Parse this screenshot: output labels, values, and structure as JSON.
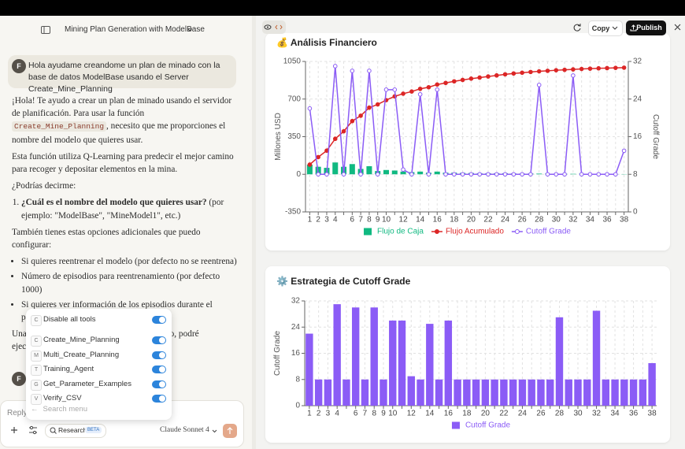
{
  "header": {
    "title": "Mining Plan Generation with ModelBase"
  },
  "artifact_toolbar": {
    "copy": "Copy",
    "publish": "Publish"
  },
  "user_message": {
    "avatar": "F",
    "text": "Hola ayudame creandome un plan de minado con la base de datos ModelBase usando el Server Create_Mine_Planning"
  },
  "response": {
    "p1": [
      "¡Hola! Te ayudo a crear un plan de minado usando el servidor de planificación. Para usar la función ",
      "Create_Mine_Planning",
      ", necesito que me proporciones el nombre del modelo que quieres usar."
    ],
    "p2": "Esta función utiliza Q-Learning para predecir el mejor camino para recoger y depositar elementos en la mina.",
    "p3": "¿Podrías decirme:",
    "list": [
      [
        "¿Cuál es el nombre del modelo que quieres usar?",
        " (por ejemplo: \"ModelBase\", \"MineModel1\", etc.)"
      ]
    ],
    "p4": "También tienes estas opciones adicionales que puedo configurar:",
    "bullets": [
      "Si quieres reentrenar el modelo (por defecto no se reentrena)",
      "Número de episodios para reentrenamiento (por defecto 1000)",
      "Si quieres ver información de los episodios durante el"
    ],
    "bullet_rest": "p",
    "p5": [
      "Una",
      "delo, podré",
      "ejec"
    ]
  },
  "second_avatar": "F",
  "tools_menu": {
    "disable_all": {
      "icon": "C",
      "label": "Disable all tools"
    },
    "tools": [
      {
        "icon": "C",
        "label": "Create_Mine_Planning"
      },
      {
        "icon": "M",
        "label": "Multi_Create_Planning"
      },
      {
        "icon": "T",
        "label": "Training_Agent"
      },
      {
        "icon": "G",
        "label": "Get_Parameter_Examples"
      },
      {
        "icon": "V",
        "label": "Verify_CSV"
      }
    ],
    "search": "Search menu"
  },
  "input": {
    "placeholder": "Reply...",
    "research": "Research",
    "beta": "BETA",
    "model": "Claude Sonnet 4"
  },
  "chart_data": [
    {
      "type": "combo",
      "title": "💰 Análisis Financiero",
      "y_label": "Millones USD",
      "y2_label": "Cutoff Grade",
      "categories": [
        "1",
        "2",
        "3",
        "4",
        null,
        "6",
        "7",
        "8",
        "9",
        "10",
        null,
        "12",
        null,
        "14",
        null,
        "16",
        null,
        "18",
        null,
        "20",
        null,
        "22",
        null,
        "24",
        null,
        "26",
        null,
        "28",
        null,
        "30",
        null,
        "32",
        null,
        "34",
        null,
        "36",
        null,
        "38"
      ],
      "ylim": [
        -350,
        1050
      ],
      "yticks": [
        -350,
        0,
        350,
        700,
        1050
      ],
      "y2lim": [
        0,
        32
      ],
      "y2ticks": [
        0,
        8,
        16,
        24,
        32
      ],
      "grid": true,
      "legend": "bottom",
      "series": [
        {
          "name": "Flujo de Caja",
          "type": "bar",
          "color": "#10b981",
          "values": [
            90,
            70,
            60,
            110,
            70,
            95,
            50,
            75,
            30,
            40,
            35,
            25,
            20,
            25,
            15,
            25,
            15,
            15,
            13,
            12,
            10,
            10,
            10,
            10,
            8,
            7,
            7,
            6,
            5,
            5,
            4,
            4,
            4,
            3,
            3,
            2,
            2,
            2
          ]
        },
        {
          "name": "Flujo Acumulado",
          "type": "line",
          "color": "#dc2626",
          "marker": "filled",
          "values": [
            90,
            160,
            220,
            330,
            400,
            495,
            545,
            620,
            650,
            690,
            725,
            750,
            770,
            795,
            810,
            835,
            850,
            865,
            878,
            890,
            900,
            910,
            920,
            930,
            938,
            945,
            952,
            958,
            963,
            968,
            972,
            976,
            980,
            983,
            986,
            988,
            990,
            992
          ]
        },
        {
          "name": "Cutoff Grade",
          "type": "line",
          "axis": "y2",
          "color": "#8b5cf6",
          "marker": "hollow",
          "values": [
            22,
            8,
            8,
            31,
            8,
            30,
            8,
            30,
            8,
            26,
            26,
            9,
            8,
            25,
            8,
            26,
            8,
            8,
            8,
            8,
            8,
            8,
            8,
            8,
            8,
            8,
            8,
            27,
            8,
            8,
            8,
            29,
            8,
            8,
            8,
            8,
            8,
            13
          ]
        }
      ]
    },
    {
      "type": "bar",
      "title": "⚙️ Estrategia de Cutoff Grade",
      "y_label": "Cutoff Grade",
      "categories": [
        "1",
        "2",
        "3",
        "4",
        null,
        "6",
        "7",
        "8",
        "9",
        "10",
        null,
        "12",
        null,
        "14",
        null,
        "16",
        null,
        "18",
        null,
        "20",
        null,
        "22",
        null,
        "24",
        null,
        "26",
        null,
        "28",
        null,
        "30",
        null,
        "32",
        null,
        "34",
        null,
        "36",
        null,
        "38"
      ],
      "ylim": [
        0,
        32
      ],
      "yticks": [
        0,
        8,
        16,
        24,
        32
      ],
      "grid": true,
      "legend": "bottom",
      "series": [
        {
          "name": "Cutoff Grade",
          "color": "#8b5cf6",
          "values": [
            22,
            8,
            8,
            31,
            8,
            30,
            8,
            30,
            8,
            26,
            26,
            9,
            8,
            25,
            8,
            26,
            8,
            8,
            8,
            8,
            8,
            8,
            8,
            8,
            8,
            8,
            8,
            27,
            8,
            8,
            8,
            29,
            8,
            8,
            8,
            8,
            8,
            13
          ]
        }
      ]
    }
  ]
}
